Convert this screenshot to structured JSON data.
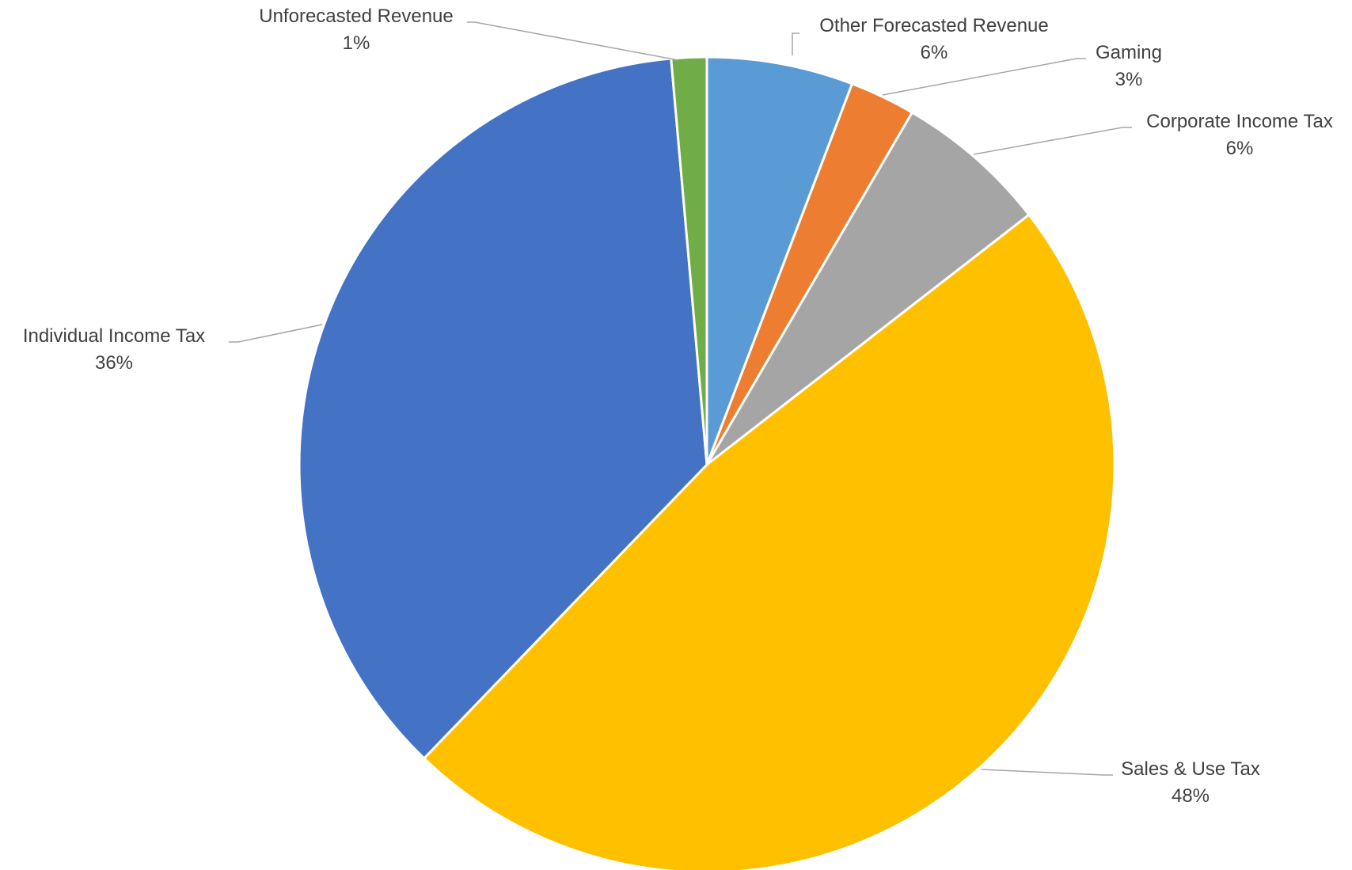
{
  "chart_data": {
    "type": "pie",
    "title": "",
    "start_angle_deg": 0,
    "direction": "clockwise",
    "slices": [
      {
        "name": "Other Forecasted Revenue",
        "value": 5.8,
        "label": "6%",
        "color": "#5b9bd5"
      },
      {
        "name": "Gaming",
        "value": 2.6,
        "label": "3%",
        "color": "#ed7d31"
      },
      {
        "name": "Corporate Income Tax",
        "value": 6.1,
        "label": "6%",
        "color": "#a5a5a5"
      },
      {
        "name": "Sales & Use Tax",
        "value": 47.7,
        "label": "48%",
        "color": "#ffc000"
      },
      {
        "name": "Individual Income Tax",
        "value": 36.4,
        "label": "36%",
        "color": "#4472c4"
      },
      {
        "name": "Unforecasted Revenue",
        "value": 1.4,
        "label": "1%",
        "color": "#70ad47"
      }
    ],
    "legend": "none"
  }
}
